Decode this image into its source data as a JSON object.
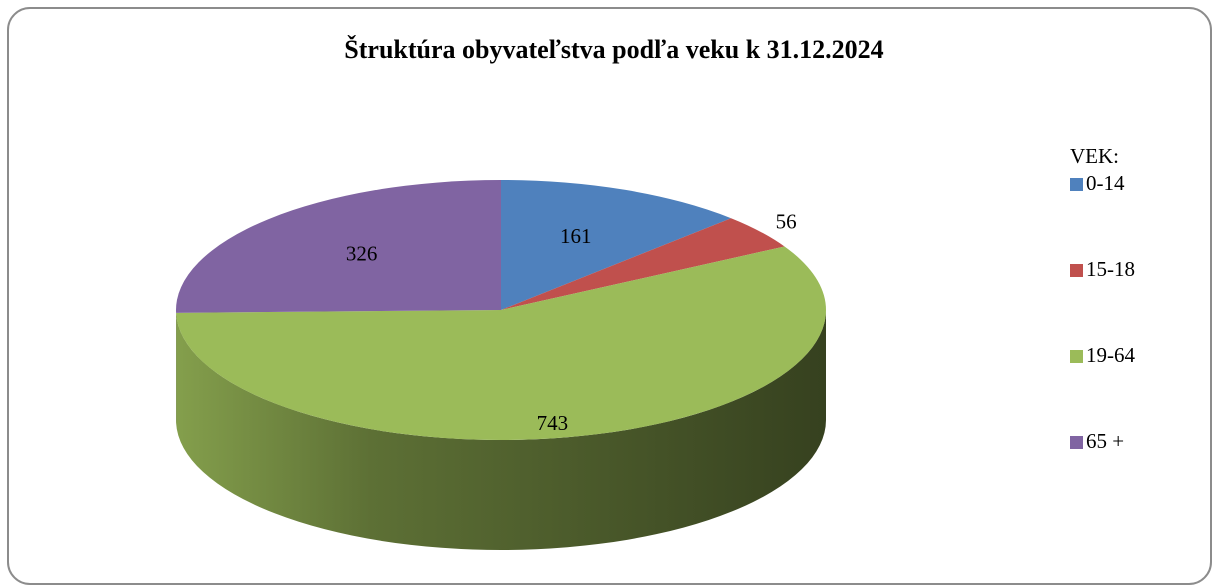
{
  "chart_data": {
    "type": "pie3d",
    "title": "Štruktúra obyvateľstva podľa veku k 31.12.2024",
    "legend_title": "VEK:",
    "categories": [
      "0-14",
      "15-18",
      "19-64",
      "65 +"
    ],
    "values": [
      161,
      56,
      743,
      326
    ],
    "colors": [
      "#4f81bd",
      "#c0504d",
      "#9bbb59",
      "#8064a2"
    ],
    "legend": "right"
  }
}
